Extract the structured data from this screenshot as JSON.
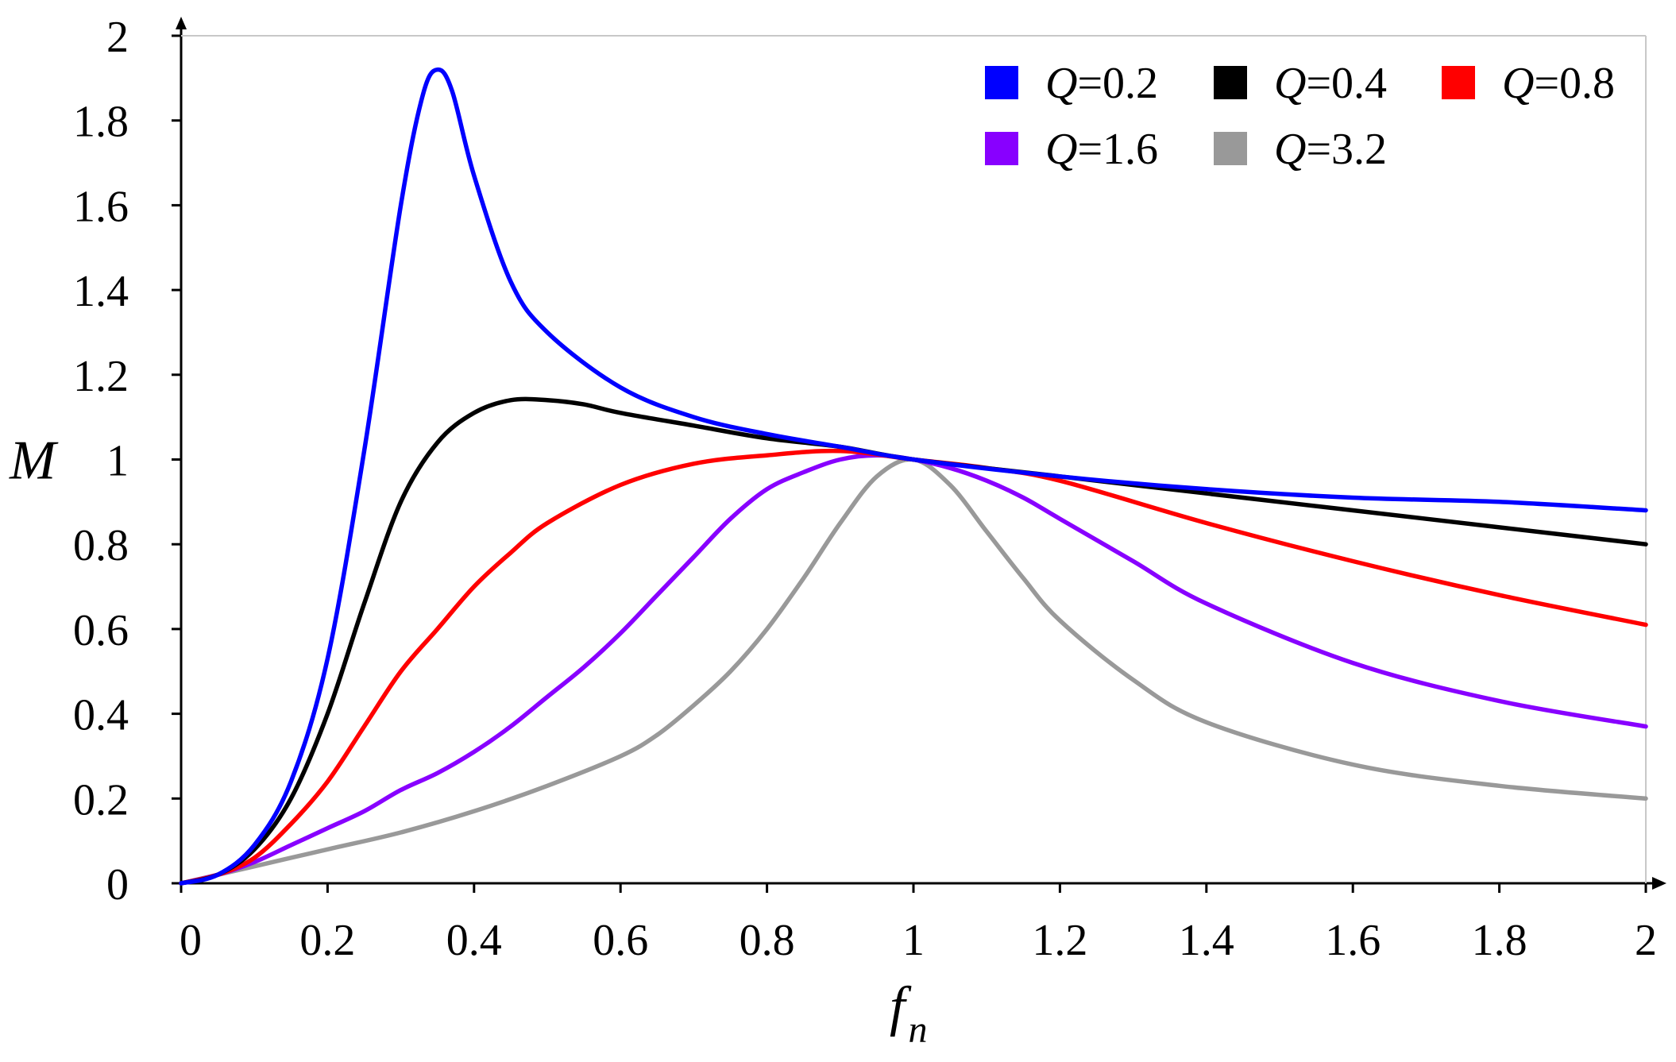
{
  "chart_data": {
    "type": "line",
    "title": "",
    "xlabel": "f",
    "xlabel_subscript": "n",
    "ylabel": "M",
    "xlim": [
      0,
      2
    ],
    "ylim": [
      0,
      2
    ],
    "x_ticks": [
      "0",
      "0.2",
      "0.4",
      "0.6",
      "0.8",
      "1",
      "1.2",
      "1.4",
      "1.6",
      "1.8",
      "2"
    ],
    "y_ticks": [
      "0",
      "0.2",
      "0.4",
      "0.6",
      "0.8",
      "1",
      "1.2",
      "1.4",
      "1.6",
      "1.8",
      "2"
    ],
    "grid": false,
    "legend_position": "top-right",
    "series": [
      {
        "name": "Q=0.2",
        "q_symbol": "Q",
        "q_value": "=0.2",
        "color": "#0000ff",
        "x": [
          0,
          0.05,
          0.1,
          0.15,
          0.2,
          0.25,
          0.3,
          0.33,
          0.35,
          0.37,
          0.4,
          0.45,
          0.5,
          0.6,
          0.7,
          0.8,
          0.9,
          1,
          1.2,
          1.4,
          1.6,
          1.8,
          2
        ],
        "y": [
          0,
          0.02,
          0.09,
          0.24,
          0.53,
          1.02,
          1.6,
          1.86,
          1.92,
          1.87,
          1.67,
          1.42,
          1.3,
          1.17,
          1.1,
          1.06,
          1.03,
          1,
          0.96,
          0.93,
          0.91,
          0.9,
          0.88
        ]
      },
      {
        "name": "Q=0.4",
        "q_symbol": "Q",
        "q_value": "=0.4",
        "color": "#000000",
        "x": [
          0,
          0.05,
          0.1,
          0.15,
          0.2,
          0.25,
          0.3,
          0.35,
          0.4,
          0.45,
          0.5,
          0.55,
          0.6,
          0.7,
          0.8,
          0.9,
          1,
          1.2,
          1.4,
          1.6,
          1.8,
          2
        ],
        "y": [
          0,
          0.02,
          0.08,
          0.2,
          0.4,
          0.66,
          0.9,
          1.04,
          1.11,
          1.14,
          1.14,
          1.13,
          1.11,
          1.08,
          1.05,
          1.03,
          1,
          0.96,
          0.92,
          0.88,
          0.84,
          0.8
        ]
      },
      {
        "name": "Q=0.8",
        "q_symbol": "Q",
        "q_value": "=0.8",
        "color": "#ff0000",
        "x": [
          0,
          0.05,
          0.1,
          0.15,
          0.2,
          0.25,
          0.3,
          0.35,
          0.4,
          0.45,
          0.5,
          0.6,
          0.7,
          0.8,
          0.9,
          1,
          1.1,
          1.2,
          1.4,
          1.6,
          1.8,
          2
        ],
        "y": [
          0,
          0.02,
          0.06,
          0.14,
          0.24,
          0.37,
          0.5,
          0.6,
          0.7,
          0.78,
          0.85,
          0.94,
          0.99,
          1.01,
          1.02,
          1,
          0.98,
          0.95,
          0.85,
          0.76,
          0.68,
          0.61
        ]
      },
      {
        "name": "Q=1.6",
        "q_symbol": "Q",
        "q_value": "=1.6",
        "color": "#8800ff",
        "x": [
          0,
          0.05,
          0.1,
          0.15,
          0.2,
          0.25,
          0.3,
          0.35,
          0.4,
          0.45,
          0.5,
          0.55,
          0.6,
          0.65,
          0.7,
          0.75,
          0.8,
          0.85,
          0.9,
          0.95,
          1,
          1.05,
          1.1,
          1.15,
          1.2,
          1.3,
          1.4,
          1.6,
          1.8,
          2
        ],
        "y": [
          0,
          0.02,
          0.05,
          0.09,
          0.13,
          0.17,
          0.22,
          0.26,
          0.31,
          0.37,
          0.44,
          0.51,
          0.59,
          0.68,
          0.77,
          0.86,
          0.93,
          0.97,
          1.0,
          1.01,
          1,
          0.98,
          0.95,
          0.91,
          0.86,
          0.76,
          0.66,
          0.52,
          0.43,
          0.37
        ]
      },
      {
        "name": "Q=3.2",
        "q_symbol": "Q",
        "q_value": "=3.2",
        "color": "#999999",
        "x": [
          0,
          0.1,
          0.2,
          0.3,
          0.4,
          0.5,
          0.6,
          0.65,
          0.7,
          0.75,
          0.8,
          0.85,
          0.9,
          0.95,
          1,
          1.05,
          1.1,
          1.15,
          1.2,
          1.3,
          1.4,
          1.6,
          1.8,
          2
        ],
        "y": [
          0,
          0.04,
          0.08,
          0.12,
          0.17,
          0.23,
          0.3,
          0.35,
          0.42,
          0.5,
          0.6,
          0.72,
          0.85,
          0.96,
          1,
          0.94,
          0.83,
          0.72,
          0.62,
          0.48,
          0.38,
          0.28,
          0.23,
          0.2
        ]
      }
    ]
  }
}
